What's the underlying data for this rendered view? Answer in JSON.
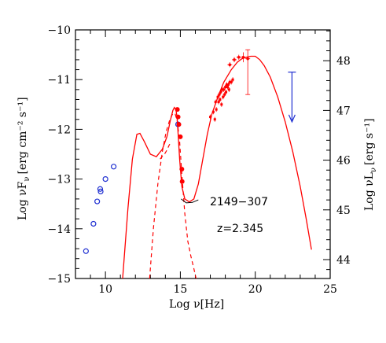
{
  "chart_data": {
    "type": "scatter",
    "annotations": {
      "source": "2149−307",
      "redshift": "z=2.345"
    },
    "x_axis": {
      "label_main": "Log ν",
      "label_unit": "[Hz]",
      "range": [
        8,
        25
      ],
      "major_ticks": [
        10,
        15,
        20,
        25
      ],
      "tick_labels": [
        "10",
        "15",
        "20",
        "25"
      ]
    },
    "y_axis_left": {
      "label_main": "Log νF",
      "label_sub": "ν",
      "label_unit": "[erg cm⁻² s⁻¹]",
      "range": [
        -15,
        -10
      ],
      "major_ticks": [
        -15,
        -14,
        -13,
        -12,
        -11,
        -10
      ],
      "tick_labels": [
        "−15",
        "−14",
        "−13",
        "−12",
        "−11",
        "−10"
      ]
    },
    "y_axis_right": {
      "label_main": "Log νL",
      "label_sub": "ν",
      "label_unit": "[erg s⁻¹]",
      "range": [
        43.62,
        48.62
      ],
      "major_ticks": [
        44,
        45,
        46,
        47,
        48
      ],
      "tick_labels": [
        "44",
        "45",
        "46",
        "47",
        "48"
      ]
    },
    "series": [
      {
        "kind": "open_circles",
        "color": "#1f2fd1",
        "x": [
          8.7,
          9.2,
          9.45,
          9.65,
          9.68,
          10.0,
          10.55,
          14.85
        ],
        "y": [
          -14.45,
          -13.9,
          -13.45,
          -13.2,
          -13.25,
          -13.0,
          -12.75,
          -11.9
        ]
      },
      {
        "kind": "filled_circles",
        "color": "#ff0000",
        "x": [
          14.8,
          14.85,
          14.9,
          15.0,
          15.1,
          15.12
        ],
        "y": [
          -11.6,
          -11.75,
          -11.9,
          -12.15,
          -12.8,
          -13.05
        ]
      },
      {
        "kind": "xray_points",
        "color": "#ff0000",
        "x": [
          17.0,
          17.2,
          17.35,
          17.5,
          17.6,
          17.7,
          17.8,
          17.9,
          18.0,
          18.1,
          18.2,
          18.3,
          18.4,
          18.5,
          17.4,
          17.55,
          17.65,
          17.85,
          18.05,
          18.25,
          17.3,
          17.75,
          17.95,
          18.15
        ],
        "y": [
          -11.75,
          -11.65,
          -11.45,
          -11.35,
          -11.3,
          -11.25,
          -11.2,
          -11.2,
          -11.15,
          -11.1,
          -11.1,
          -11.05,
          -11.05,
          -11.0,
          -11.6,
          -11.45,
          -11.4,
          -11.35,
          -11.25,
          -11.2,
          -11.8,
          -11.5,
          -11.3,
          -11.15
        ]
      },
      {
        "kind": "gamma_points",
        "color": "#ff0000",
        "x": [
          18.3,
          18.6,
          18.9,
          19.2,
          19.5
        ],
        "y": [
          -10.7,
          -10.6,
          -10.55,
          -10.55,
          -10.58
        ],
        "errors": [
          0.05,
          0.05,
          0.05,
          0.1,
          0.0
        ]
      },
      {
        "kind": "big_errorbar",
        "color": "#ff0000",
        "x": 19.5,
        "y_low": -11.3,
        "y_high": -10.4
      },
      {
        "kind": "upper_limit",
        "color": "#1f2fd1",
        "x": 22.45,
        "y_top": -10.85,
        "y_bottom": -11.85
      },
      {
        "kind": "model_total",
        "color": "#ff0000",
        "x": [
          11.15,
          11.5,
          11.8,
          12.1,
          12.3,
          12.6,
          13.0,
          13.4,
          13.8,
          14.1,
          14.35,
          14.5,
          14.6,
          14.7,
          14.78,
          14.85,
          14.95,
          15.1,
          15.3,
          15.6,
          15.9,
          16.2,
          16.5,
          16.8,
          17.1,
          17.5,
          17.9,
          18.4,
          18.8,
          19.1,
          19.4,
          19.7,
          20.0,
          20.3,
          20.6,
          21.0,
          21.5,
          22.0,
          22.5,
          23.0,
          23.4,
          23.75
        ],
        "y": [
          -15.0,
          -13.6,
          -12.6,
          -12.1,
          -12.08,
          -12.25,
          -12.5,
          -12.55,
          -12.4,
          -12.15,
          -11.8,
          -11.62,
          -11.56,
          -11.6,
          -11.75,
          -12.1,
          -12.6,
          -13.15,
          -13.4,
          -13.46,
          -13.4,
          -13.1,
          -12.6,
          -12.1,
          -11.7,
          -11.35,
          -11.05,
          -10.8,
          -10.65,
          -10.58,
          -10.55,
          -10.53,
          -10.53,
          -10.6,
          -10.72,
          -10.95,
          -11.35,
          -11.85,
          -12.45,
          -13.15,
          -13.8,
          -14.42
        ]
      },
      {
        "kind": "model_disc",
        "color": "#ff0000",
        "x": [
          12.95,
          13.2,
          13.5,
          13.8,
          14.05,
          14.3,
          14.5,
          14.65,
          14.8,
          14.95,
          15.1,
          15.3,
          15.5,
          15.7,
          15.9,
          16.05
        ],
        "y": [
          -15.0,
          -14.0,
          -13.1,
          -12.45,
          -12.05,
          -11.8,
          -11.68,
          -11.68,
          -11.85,
          -12.25,
          -12.9,
          -13.7,
          -14.25,
          -14.55,
          -14.8,
          -15.0
        ]
      },
      {
        "kind": "model_ssc_dashed",
        "color": "#ff0000",
        "x": [
          13.65,
          13.75,
          13.9,
          14.1,
          14.25,
          14.35
        ],
        "y": [
          -12.6,
          -12.56,
          -12.52,
          -12.42,
          -12.32,
          -12.27
        ]
      },
      {
        "kind": "model_bump",
        "color": "#000000",
        "x": [
          15.05,
          15.4,
          15.8,
          16.2
        ],
        "y": [
          -13.4,
          -13.48,
          -13.47,
          -13.42
        ]
      }
    ]
  }
}
